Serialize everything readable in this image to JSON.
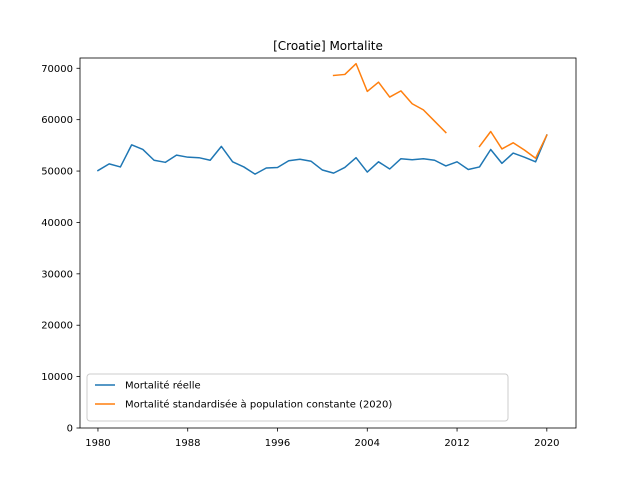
{
  "chart_data": {
    "type": "line",
    "title": "[Croatie] Mortalite",
    "xlabel": "",
    "ylabel": "",
    "xlim": [
      1978.4,
      2022.6
    ],
    "ylim": [
      0,
      72000
    ],
    "x_ticks": [
      1980,
      1988,
      1996,
      2004,
      2012,
      2020
    ],
    "y_ticks": [
      0,
      10000,
      20000,
      30000,
      40000,
      50000,
      60000,
      70000
    ],
    "grid": false,
    "legend_position": "lower-left",
    "series": [
      {
        "name": "Mortalité réelle",
        "color": "#1f77b4",
        "x": [
          1980,
          1981,
          1982,
          1983,
          1984,
          1985,
          1986,
          1987,
          1988,
          1989,
          1990,
          1991,
          1992,
          1993,
          1994,
          1995,
          1996,
          1997,
          1998,
          1999,
          2000,
          2001,
          2002,
          2003,
          2004,
          2005,
          2006,
          2007,
          2008,
          2009,
          2010,
          2011,
          2012,
          2013,
          2014,
          2015,
          2016,
          2017,
          2018,
          2019,
          2020
        ],
        "y": [
          50100,
          51400,
          50800,
          55100,
          54200,
          52100,
          51700,
          53100,
          52700,
          52600,
          52100,
          54800,
          51800,
          50800,
          49400,
          50600,
          50700,
          52000,
          52300,
          51900,
          50200,
          49600,
          50700,
          52600,
          49800,
          51800,
          50400,
          52400,
          52200,
          52400,
          52100,
          51000,
          51800,
          50300,
          50800,
          54200,
          51500,
          53500,
          52700,
          51800,
          57000
        ]
      },
      {
        "name": "Mortalité standardisée à population constante (2020)",
        "color": "#ff7f0e",
        "x": [
          1980,
          1981,
          1982,
          1983,
          1984,
          1985,
          1986,
          1987,
          1988,
          1989,
          1990,
          1991,
          1992,
          1993,
          1994,
          1995,
          1996,
          1997,
          1998,
          1999,
          2000,
          2001,
          2002,
          2003,
          2004,
          2005,
          2006,
          2007,
          2008,
          2009,
          2010,
          2011,
          2012,
          2013,
          2014,
          2015,
          2016,
          2017,
          2018,
          2019,
          2020
        ],
        "y": [
          null,
          null,
          null,
          null,
          null,
          null,
          null,
          null,
          null,
          null,
          null,
          null,
          null,
          null,
          null,
          null,
          null,
          null,
          null,
          null,
          null,
          68600,
          68800,
          70900,
          65500,
          67300,
          64400,
          65600,
          63100,
          61900,
          59700,
          57500,
          null,
          null,
          54800,
          57700,
          54300,
          55500,
          54100,
          52500,
          57000
        ]
      }
    ]
  }
}
